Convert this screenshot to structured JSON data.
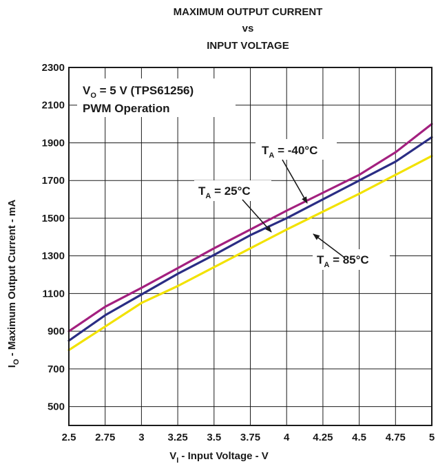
{
  "chart_data": {
    "type": "line",
    "title_lines": [
      "MAXIMUM OUTPUT CURRENT",
      "vs",
      "INPUT VOLTAGE"
    ],
    "xlabel": {
      "main": "V",
      "sub": "I",
      "rest": " - Input Voltage - V"
    },
    "ylabel": {
      "main": "I",
      "sub": "O",
      "rest": " - Maximum Output Current - mA"
    },
    "xlim": [
      2.5,
      5
    ],
    "ylim": [
      400,
      2300
    ],
    "x_tick_labels": [
      "2.5",
      "2.75",
      "3",
      "3.25",
      "3.5",
      "3.75",
      "4",
      "4.25",
      "4.5",
      "4.75",
      "5"
    ],
    "y_tick_labels": [
      "500",
      "700",
      "900",
      "1100",
      "1300",
      "1500",
      "1700",
      "1900",
      "2100",
      "2300"
    ],
    "grid": true,
    "annotations": {
      "condition_1": {
        "main": "V",
        "sub": "O",
        "rest": " = 5 V (TPS61256)"
      },
      "condition_2": "PWM Operation",
      "label_m40": {
        "main": "T",
        "sub": "A",
        "rest": " = -40°C"
      },
      "label_25": {
        "main": "T",
        "sub": "A",
        "rest": " = 25°C"
      },
      "label_85": {
        "main": "T",
        "sub": "A",
        "rest": " = 85°C"
      }
    },
    "series": [
      {
        "key": "m40",
        "color": "#a3207f",
        "x": [
          2.5,
          2.75,
          3,
          3.25,
          3.5,
          3.75,
          4,
          4.25,
          4.5,
          4.75,
          5
        ],
        "values": [
          900,
          1030,
          1130,
          1235,
          1340,
          1440,
          1540,
          1635,
          1730,
          1850,
          2000
        ]
      },
      {
        "key": "25",
        "color": "#2a2d84",
        "x": [
          2.5,
          2.75,
          3,
          3.25,
          3.5,
          3.75,
          4,
          4.25,
          4.5,
          4.75,
          5
        ],
        "values": [
          850,
          985,
          1095,
          1205,
          1305,
          1410,
          1500,
          1600,
          1700,
          1800,
          1930
        ]
      },
      {
        "key": "85",
        "color": "#f2e200",
        "x": [
          2.5,
          2.75,
          3,
          3.25,
          3.5,
          3.75,
          4,
          4.25,
          4.5,
          4.75,
          5
        ],
        "values": [
          800,
          925,
          1050,
          1140,
          1240,
          1340,
          1440,
          1535,
          1630,
          1730,
          1830
        ]
      }
    ]
  }
}
